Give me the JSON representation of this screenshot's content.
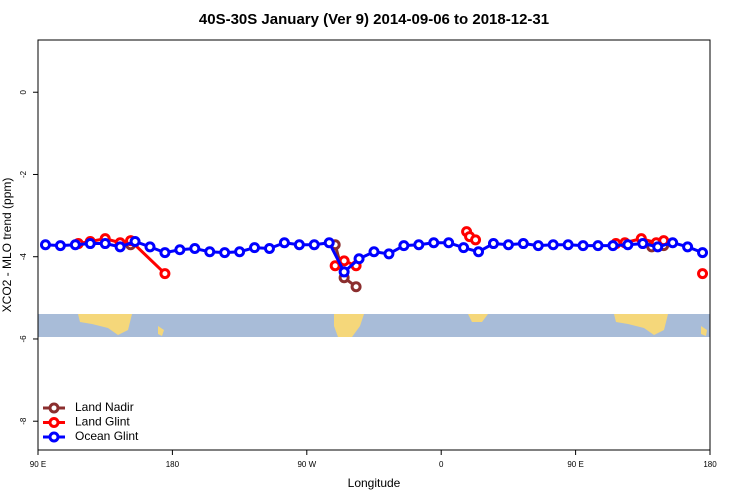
{
  "chart_data": {
    "type": "line",
    "title": "40S-30S January (Ver 9)   2014-09-06 to 2018-12-31",
    "x_label": "Longitude",
    "y_label": "XCO2 - MLO trend (ppm)",
    "xlim": [
      90,
      540
    ],
    "xticks": [
      {
        "value": 90,
        "label": "90 E"
      },
      {
        "value": 180,
        "label": "180"
      },
      {
        "value": 270,
        "label": "90 W"
      },
      {
        "value": 360,
        "label": "0"
      },
      {
        "value": 450,
        "label": "90 E"
      },
      {
        "value": 540,
        "label": "180"
      }
    ],
    "ylim": [
      -8.7,
      1.27
    ],
    "yticks": [
      0,
      -2,
      -4,
      -6,
      -8
    ],
    "legend": "bottomleft",
    "series": [
      {
        "name": "Land Nadir",
        "color": "#8b2e2e",
        "x": [
          145,
          152,
          null,
          289,
          295,
          303,
          null,
          501,
          509
        ],
        "values": [
          -3.73,
          -3.71,
          null,
          -3.71,
          -4.51,
          -4.73,
          null,
          -3.76,
          -3.73
        ]
      },
      {
        "name": "Land Glint",
        "color": "#ff0000",
        "x": [
          117,
          125,
          135,
          145,
          152,
          175,
          null,
          289,
          295,
          303,
          null,
          377,
          379,
          383,
          null,
          477,
          483,
          494,
          504,
          509,
          null,
          535
        ],
        "values": [
          -3.68,
          -3.63,
          -3.56,
          -3.66,
          -3.61,
          -4.41,
          null,
          -4.22,
          -4.1,
          -4.22,
          null,
          -3.39,
          -3.51,
          -3.59,
          null,
          -3.68,
          -3.66,
          -3.56,
          -3.66,
          -3.61,
          null,
          -4.41
        ]
      },
      {
        "name": "Ocean Glint",
        "color": "#0000ff",
        "x": [
          95,
          105,
          115,
          125,
          135,
          145,
          155,
          165,
          175,
          185,
          195,
          205,
          215,
          225,
          235,
          245,
          255,
          265,
          275,
          285,
          295,
          305,
          315,
          325,
          335,
          345,
          355,
          365,
          375,
          385,
          395,
          405,
          415,
          425,
          435,
          445,
          455,
          465,
          475,
          485,
          495,
          505,
          515,
          525,
          535
        ],
        "values": [
          -3.71,
          -3.73,
          -3.71,
          -3.68,
          -3.68,
          -3.76,
          -3.63,
          -3.76,
          -3.9,
          -3.83,
          -3.8,
          -3.88,
          -3.9,
          -3.88,
          -3.78,
          -3.8,
          -3.66,
          -3.71,
          -3.71,
          -3.66,
          -4.37,
          -4.05,
          -3.88,
          -3.93,
          -3.73,
          -3.71,
          -3.66,
          -3.66,
          -3.78,
          -3.88,
          -3.68,
          -3.71,
          -3.68,
          -3.73,
          -3.71,
          -3.71,
          -3.73,
          -3.73,
          -3.73,
          -3.71,
          -3.68,
          -3.76,
          -3.66,
          -3.76,
          -3.9
        ]
      }
    ]
  }
}
